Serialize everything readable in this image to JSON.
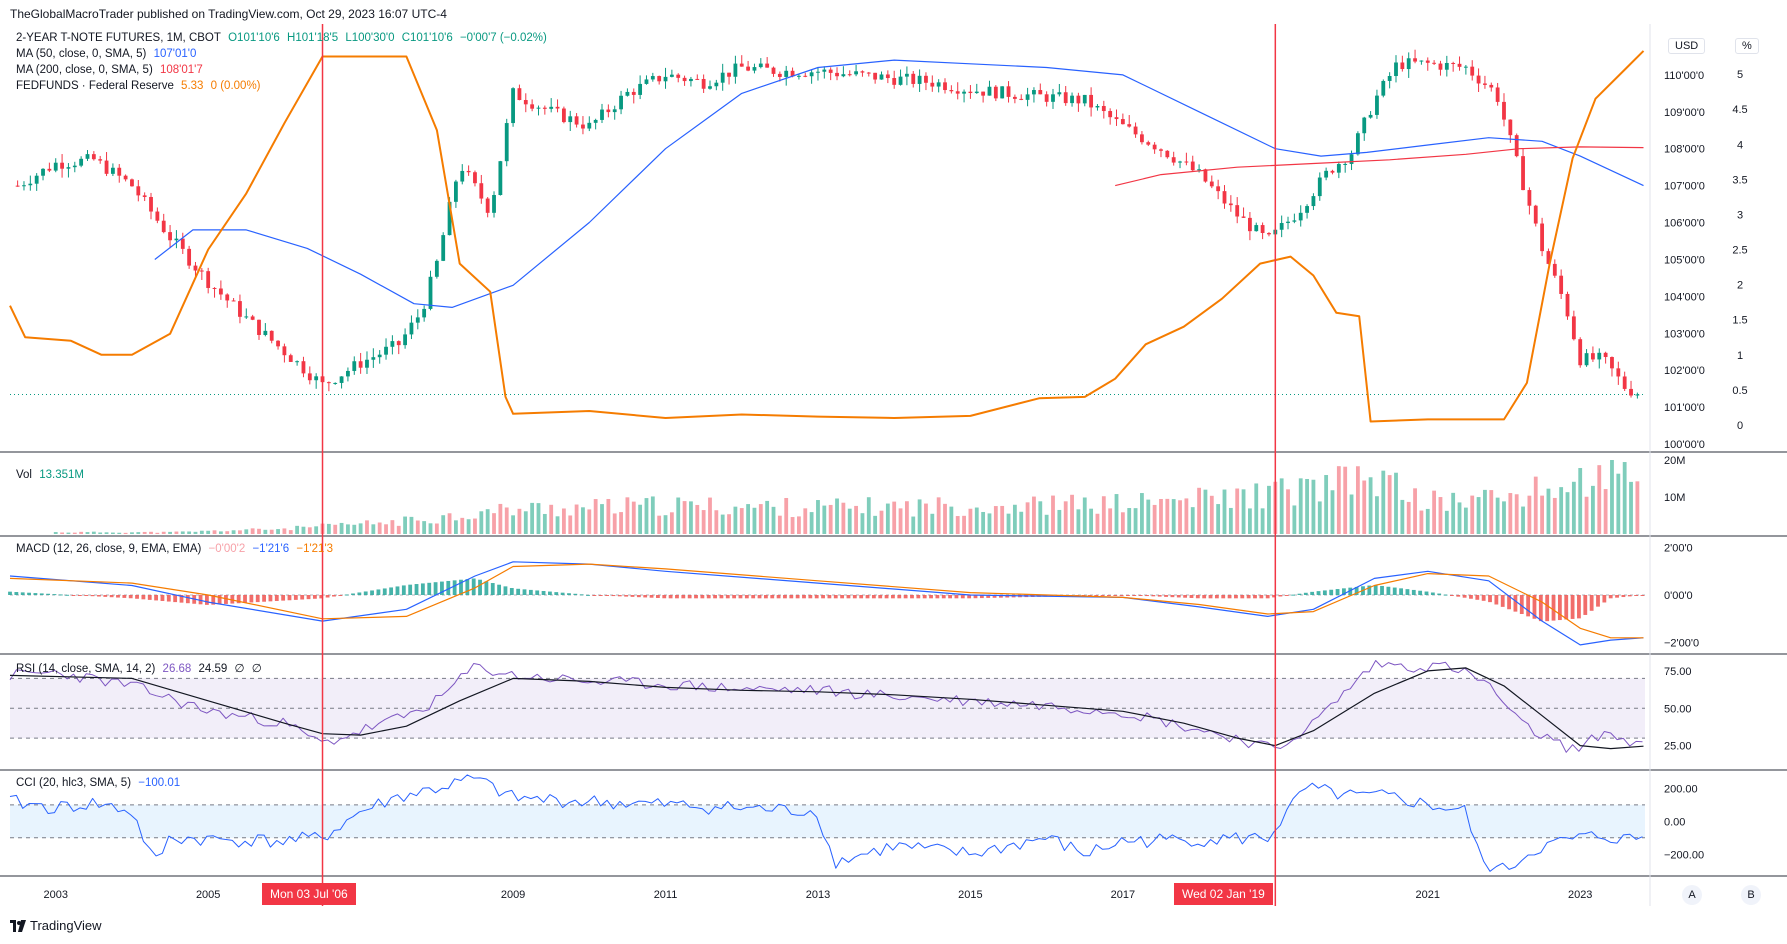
{
  "header": {
    "published_by": "TheGlobalMacroTrader published on TradingView.com, Oct 29, 2023 16:07 UTC-4"
  },
  "legend": {
    "symbol": "2-YEAR T-NOTE FUTURES, 1M, CBOT",
    "ohlc": {
      "o": "O101'10'6",
      "h": "H101'18'5",
      "l": "L100'30'0",
      "c": "C101'10'6",
      "chg": "−0'00'7 (−0.02%)"
    },
    "ma50": {
      "label": "MA (50, close, 0, SMA, 5)",
      "value": "107'01'0",
      "color": "#2962ff"
    },
    "ma200": {
      "label": "MA (200, close, 0, SMA, 5)",
      "value": "108'01'7",
      "color": "#f23645"
    },
    "fedfunds": {
      "label": "FEDFUNDS · Federal Reserve",
      "value": "5.33",
      "chg": "0 (0.00%)",
      "color": "#f57c00"
    },
    "vol": {
      "label": "Vol",
      "value": "13.351M"
    },
    "macd": {
      "label": "MACD (12, 26, close, 9, EMA, EMA)",
      "v1": "−0'00'2",
      "v2": "−1'21'6",
      "v3": "−1'21'3"
    },
    "rsi": {
      "label": "RSI (14, close, SMA, 14, 2)",
      "v1": "26.68",
      "v2": "24.59",
      "v3": "∅",
      "v4": "∅"
    },
    "cci": {
      "label": "CCI (20, hlc3, SMA, 5)",
      "value": "−100.01"
    }
  },
  "top_buttons": {
    "currency": "USD",
    "percent": "%"
  },
  "bottom": {
    "date_tag_1": "Mon 03 Jul '06",
    "date_tag_2": "Wed 02 Jan '19",
    "brand": "TradingView",
    "btn_a": "A",
    "btn_b": "B"
  },
  "chart_data": [
    {
      "type": "candlestick",
      "title": "2-YEAR T-NOTE FUTURES, 1M, CBOT",
      "x_tick_labels": [
        "2003",
        "2005",
        "2009",
        "2011",
        "2013",
        "2015",
        "2017",
        "2021",
        "2023"
      ],
      "y_ticks_price": [
        "110'00'0",
        "109'00'0",
        "108'00'0",
        "107'00'0",
        "106'00'0",
        "105'00'0",
        "104'00'0",
        "103'00'0",
        "102'00'0",
        "101'00'0",
        "100'00'0"
      ],
      "y_ticks_fedfunds": [
        "5",
        "4.5",
        "4",
        "3.5",
        "3",
        "2.5",
        "2",
        "1.5",
        "1",
        "0.5",
        "0"
      ],
      "price_ylim": [
        100,
        111
      ],
      "fedfunds_ylim": [
        0,
        5.5
      ],
      "x_range": [
        2002.4,
        2023.85
      ],
      "price_series": {
        "x": [
          2002.5,
          2003.0,
          2003.5,
          2004.0,
          2004.5,
          2005.0,
          2005.5,
          2006.0,
          2006.5,
          2007.0,
          2007.5,
          2007.8,
          2008.0,
          2008.3,
          2008.7,
          2009.0,
          2009.5,
          2010.0,
          2010.5,
          2011.0,
          2011.5,
          2012.0,
          2012.5,
          2013.0,
          2013.5,
          2014.0,
          2014.5,
          2015.0,
          2015.5,
          2016.0,
          2016.5,
          2017.0,
          2017.5,
          2018.0,
          2018.5,
          2018.9,
          2019.3,
          2019.7,
          2020.0,
          2020.3,
          2020.6,
          2021.0,
          2021.5,
          2021.9,
          2022.2,
          2022.5,
          2022.8,
          2023.0,
          2023.3,
          2023.6,
          2023.83
        ],
        "close": [
          107.0,
          107.6,
          107.7,
          107.0,
          105.6,
          104.4,
          103.4,
          102.5,
          101.6,
          102.2,
          102.7,
          103.6,
          104.9,
          107.6,
          106.3,
          109.5,
          109.0,
          108.6,
          109.5,
          110.0,
          109.8,
          110.2,
          110.1,
          110.1,
          110.0,
          109.9,
          109.8,
          109.6,
          109.5,
          109.4,
          109.3,
          108.6,
          108.0,
          107.3,
          106.2,
          105.5,
          106.3,
          107.4,
          107.9,
          109.3,
          110.3,
          110.3,
          110.2,
          109.5,
          107.4,
          105.3,
          103.8,
          102.3,
          102.3,
          101.5,
          101.34
        ]
      },
      "ma50": {
        "name": "MA (50, close, 0, SMA, 5)",
        "x": [
          2004.3,
          2004.8,
          2005.5,
          2006.3,
          2007.0,
          2007.7,
          2008.2,
          2009.0,
          2010.0,
          2011.0,
          2012.0,
          2013.0,
          2014.0,
          2015.0,
          2016.0,
          2017.0,
          2018.0,
          2019.0,
          2019.6,
          2020.2,
          2021.0,
          2021.8,
          2022.5,
          2023.0,
          2023.83
        ],
        "values": [
          105.0,
          105.8,
          105.8,
          105.3,
          104.6,
          103.8,
          103.7,
          104.3,
          106.0,
          108.0,
          109.5,
          110.2,
          110.4,
          110.3,
          110.2,
          110.0,
          109.0,
          108.0,
          107.8,
          107.9,
          108.1,
          108.3,
          108.2,
          107.8,
          107.0
        ]
      },
      "ma200": {
        "name": "MA (200, close, 0, SMA, 5)",
        "x": [
          2016.9,
          2017.5,
          2018.5,
          2019.5,
          2020.5,
          2021.5,
          2022.2,
          2023.0,
          2023.83
        ],
        "values": [
          107.0,
          107.3,
          107.5,
          107.6,
          107.7,
          107.85,
          108.0,
          108.05,
          108.03
        ]
      },
      "fedfunds": {
        "name": "FEDFUNDS · Federal Reserve",
        "x": [
          2002.4,
          2002.6,
          2003.2,
          2003.6,
          2004.0,
          2004.5,
          2005.0,
          2005.5,
          2006.0,
          2006.5,
          2007.0,
          2007.6,
          2008.0,
          2008.3,
          2008.7,
          2008.9,
          2009.0,
          2010.0,
          2011.0,
          2012.0,
          2013.0,
          2014.0,
          2015.0,
          2015.9,
          2016.5,
          2016.9,
          2017.3,
          2017.8,
          2018.3,
          2018.8,
          2019.2,
          2019.5,
          2019.8,
          2020.1,
          2020.25,
          2021.0,
          2022.0,
          2022.3,
          2022.6,
          2022.9,
          2023.2,
          2023.6,
          2023.83
        ],
        "values": [
          1.7,
          1.25,
          1.2,
          1.0,
          1.0,
          1.3,
          2.5,
          3.3,
          4.3,
          5.25,
          5.25,
          5.25,
          4.2,
          2.3,
          1.9,
          0.4,
          0.16,
          0.2,
          0.1,
          0.15,
          0.12,
          0.1,
          0.13,
          0.38,
          0.4,
          0.66,
          1.15,
          1.4,
          1.8,
          2.3,
          2.4,
          2.13,
          1.6,
          1.55,
          0.05,
          0.08,
          0.08,
          0.6,
          2.3,
          3.8,
          4.65,
          5.08,
          5.33
        ]
      }
    },
    {
      "type": "bar",
      "title": "Vol",
      "y_ticks": [
        "20M",
        "10M"
      ],
      "ylim": [
        0,
        20
      ],
      "note": "monthly volume in millions",
      "x": [
        2004.5,
        2006.0,
        2007.5,
        2009.0,
        2011.0,
        2013.0,
        2015.0,
        2017.0,
        2018.5,
        2019.5,
        2020.3,
        2021.0,
        2022.0,
        2022.7,
        2023.4,
        2023.83
      ],
      "values": [
        0.5,
        1.5,
        3.5,
        7.0,
        8.0,
        7.5,
        8.0,
        8.5,
        10.5,
        13.0,
        16.0,
        9.0,
        10.5,
        13.0,
        17.0,
        13.35
      ]
    },
    {
      "type": "line",
      "title": "MACD (12, 26, close, 9, EMA, EMA)",
      "y_ticks": [
        "2'00'0",
        "0'00'0",
        "−2'00'0"
      ],
      "ylim": [
        -2.4,
        2.4
      ],
      "series": [
        {
          "name": "MACD",
          "x": [
            2002.4,
            2004.0,
            2005.0,
            2006.5,
            2007.6,
            2008.5,
            2009.0,
            2010.0,
            2011.0,
            2013.0,
            2015.0,
            2017.0,
            2018.0,
            2018.9,
            2019.5,
            2020.3,
            2021.0,
            2021.8,
            2022.5,
            2023.0,
            2023.4,
            2023.83
          ],
          "values": [
            0.8,
            0.4,
            -0.3,
            -1.1,
            -0.6,
            0.8,
            1.4,
            1.3,
            1.0,
            0.5,
            0.0,
            -0.1,
            -0.5,
            -0.9,
            -0.6,
            0.7,
            1.0,
            0.6,
            -1.1,
            -2.1,
            -1.9,
            -1.8
          ]
        },
        {
          "name": "Signal",
          "x": [
            2002.4,
            2004.0,
            2005.0,
            2006.5,
            2007.6,
            2008.5,
            2009.0,
            2010.0,
            2011.0,
            2013.0,
            2015.0,
            2017.0,
            2018.0,
            2018.9,
            2019.5,
            2020.3,
            2021.0,
            2021.8,
            2022.5,
            2023.0,
            2023.4,
            2023.83
          ],
          "values": [
            0.7,
            0.5,
            0.0,
            -1.0,
            -0.9,
            0.3,
            1.2,
            1.3,
            1.1,
            0.6,
            0.1,
            -0.1,
            -0.4,
            -0.8,
            -0.7,
            0.4,
            0.9,
            0.8,
            -0.3,
            -1.4,
            -1.8,
            -1.8
          ]
        }
      ]
    },
    {
      "type": "line",
      "title": "RSI (14, close, SMA, 14, 2)",
      "y_ticks": [
        "75.00",
        "50.00",
        "25.00"
      ],
      "ylim": [
        10,
        85
      ],
      "band": [
        30,
        70
      ],
      "series": [
        {
          "name": "RSI",
          "x": [
            2002.4,
            2003.0,
            2004.0,
            2005.0,
            2006.0,
            2006.5,
            2007.0,
            2007.6,
            2008.0,
            2008.5,
            2009.0,
            2010.0,
            2011.0,
            2012.0,
            2013.0,
            2014.0,
            2015.0,
            2016.0,
            2017.0,
            2017.8,
            2018.5,
            2019.0,
            2019.5,
            2020.3,
            2020.8,
            2021.3,
            2021.8,
            2022.2,
            2022.7,
            2023.0,
            2023.3,
            2023.6,
            2023.83
          ],
          "values": [
            72,
            74,
            65,
            48,
            40,
            26,
            35,
            45,
            55,
            78,
            72,
            68,
            66,
            63,
            62,
            58,
            55,
            52,
            48,
            38,
            30,
            22,
            40,
            80,
            78,
            78,
            66,
            40,
            26,
            22,
            35,
            28,
            26.68
          ]
        },
        {
          "name": "RSI-based MA",
          "x": [
            2002.4,
            2004.0,
            2005.0,
            2006.0,
            2006.5,
            2007.0,
            2007.6,
            2008.3,
            2009.0,
            2010.0,
            2011.0,
            2012.0,
            2013.0,
            2014.0,
            2015.0,
            2016.0,
            2017.0,
            2017.8,
            2018.5,
            2019.0,
            2019.5,
            2020.3,
            2021.0,
            2021.5,
            2022.0,
            2022.5,
            2023.0,
            2023.4,
            2023.83
          ],
          "values": [
            72,
            70,
            55,
            40,
            33,
            32,
            38,
            55,
            70,
            68,
            64,
            62,
            61,
            59,
            56,
            52,
            48,
            40,
            30,
            25,
            35,
            60,
            75,
            77,
            65,
            45,
            25,
            23,
            24.59
          ]
        }
      ]
    },
    {
      "type": "line",
      "title": "CCI (20, hlc3, SMA, 5)",
      "y_ticks": [
        "200.00",
        "0.00",
        "−200.00"
      ],
      "ylim": [
        -320,
        300
      ],
      "band": [
        -100,
        100
      ],
      "series": [
        {
          "name": "CCI",
          "x": [
            2002.4,
            2003.0,
            2003.5,
            2004.0,
            2004.3,
            2004.5,
            2005.0,
            2006.0,
            2006.5,
            2007.0,
            2007.5,
            2008.0,
            2008.5,
            2009.0,
            2010.0,
            2011.0,
            2012.0,
            2013.0,
            2013.2,
            2014.0,
            2015.0,
            2016.0,
            2016.5,
            2017.0,
            2018.0,
            2018.9,
            2019.4,
            2020.0,
            2020.5,
            2021.0,
            2021.5,
            2021.7,
            2022.0,
            2022.4,
            2022.8,
            2023.0,
            2023.3,
            2023.6,
            2023.83
          ],
          "values": [
            120,
            80,
            110,
            60,
            -260,
            -100,
            -110,
            -120,
            -100,
            60,
            150,
            200,
            260,
            140,
            120,
            100,
            80,
            60,
            -250,
            -150,
            -200,
            -100,
            -200,
            -120,
            -110,
            -100,
            200,
            150,
            150,
            100,
            60,
            -250,
            -300,
            -170,
            -120,
            -100,
            -90,
            -110,
            -100.01
          ]
        }
      ]
    }
  ]
}
